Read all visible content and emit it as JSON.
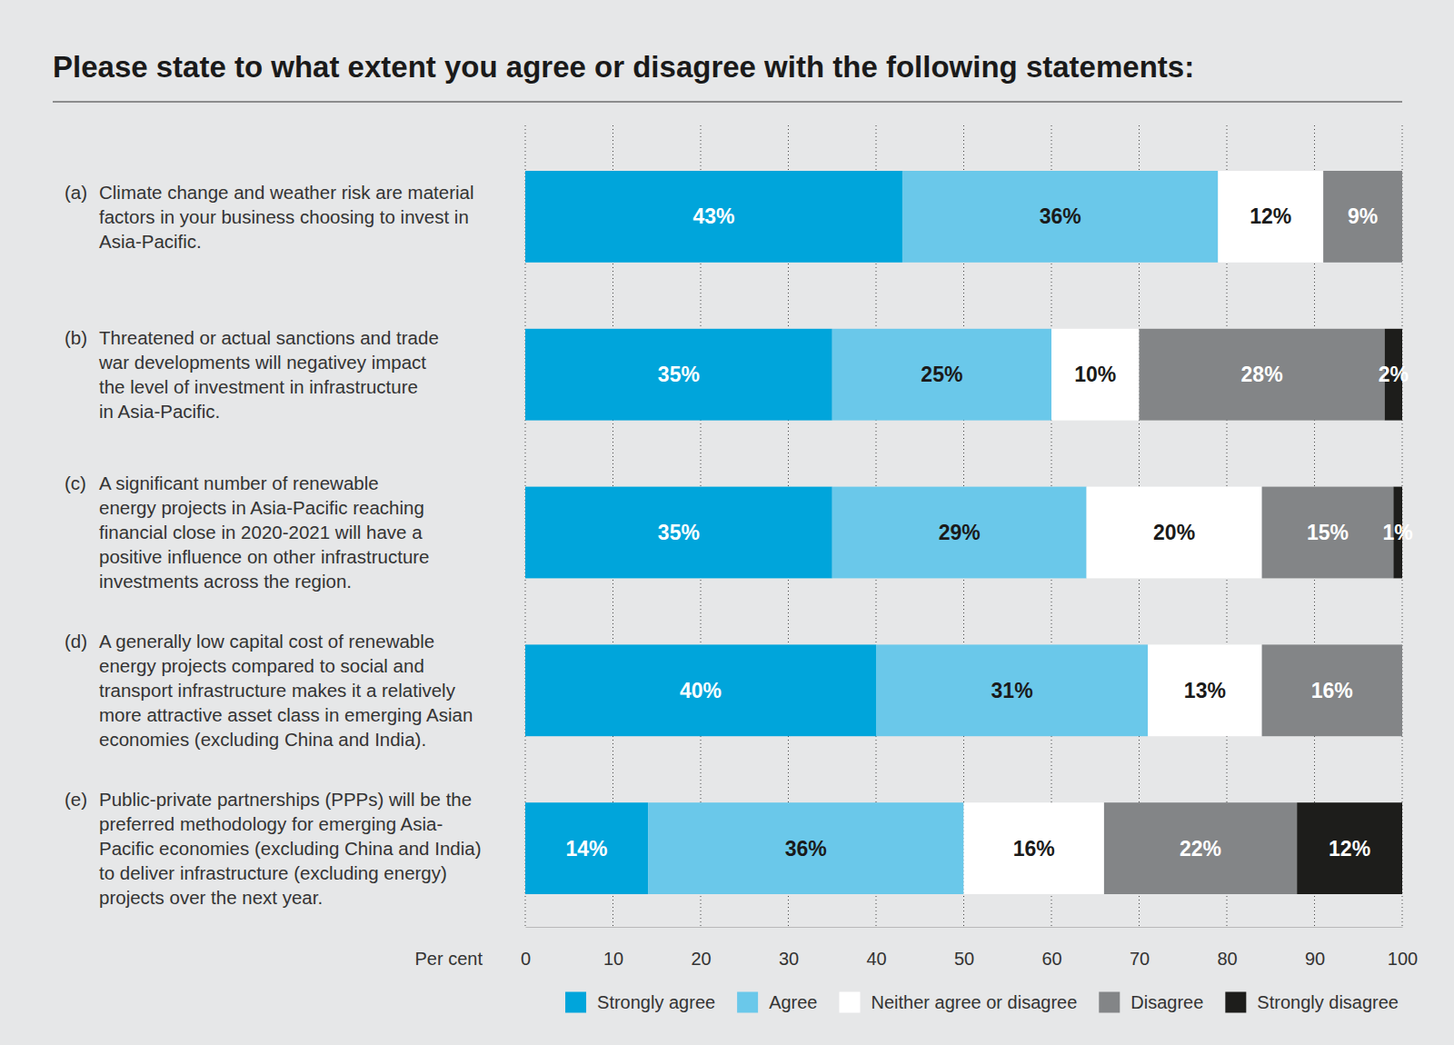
{
  "chart_data": {
    "type": "bar",
    "orientation": "horizontal",
    "stacked": true,
    "data_labels": true,
    "grid": true,
    "legend": "bottom",
    "title": "Please state to what extent you agree or disagree with the following statements:",
    "xlabel": "Per cent",
    "categories": [
      "(a) Climate change and weather risk are material\nfactors in your business choosing to invest in\nAsia-Pacific.",
      "(b) Threatened or actual sanctions and trade\nwar developments will negativey impact\nthe level of investment in infrastructure\nin Asia-Pacific.",
      "(c) A significant number of renewable\nenergy projects in Asia-Pacific reaching\nfinancial close in 2020-2021 will have a\npositive influence on other infrastructure\ninvestments across the region.",
      "(d) A generally low capital cost of renewable\nenergy projects compared to social and\ntransport infrastructure makes it a relatively\nmore attractive asset class in emerging Asian\neconomies (excluding China and India).",
      "(e) Public-private partnerships (PPPs) will be the\npreferred methodology for emerging Asia-\nPacific economies (excluding China and India)\nto deliver infrastructure (excluding energy)\nprojects over the next year."
    ],
    "series": [
      {
        "name": "Strongly agree",
        "color": "#00a5db",
        "values": [
          43,
          35,
          35,
          40,
          14
        ],
        "value_labels": [
          "43%",
          "35%",
          "35%",
          "40%",
          "14%"
        ]
      },
      {
        "name": "Agree",
        "color": "#6ac8ea",
        "values": [
          36,
          25,
          29,
          31,
          36
        ],
        "value_labels": [
          "36%",
          "25%",
          "29%",
          "31%",
          "36%"
        ]
      },
      {
        "name": "Neither agree or disagree",
        "color": "#ffffff",
        "values": [
          12,
          10,
          20,
          13,
          16
        ],
        "value_labels": [
          "12%",
          "10%",
          "20%",
          "13%",
          "16%"
        ]
      },
      {
        "name": "Disagree",
        "color": "#838587",
        "values": [
          9,
          28,
          15,
          16,
          22
        ],
        "value_labels": [
          "9%",
          "28%",
          "15%",
          "16%",
          "22%"
        ]
      },
      {
        "name": "Strongly disagree",
        "color": "#1d1d1b",
        "values": [
          null,
          2,
          1,
          null,
          12
        ],
        "value_labels": [
          null,
          "2%",
          "1%",
          null,
          "12%"
        ]
      }
    ],
    "xlim": [
      0,
      100
    ],
    "xticks": [
      0,
      10,
      20,
      30,
      40,
      50,
      60,
      70,
      80,
      90,
      100
    ]
  }
}
